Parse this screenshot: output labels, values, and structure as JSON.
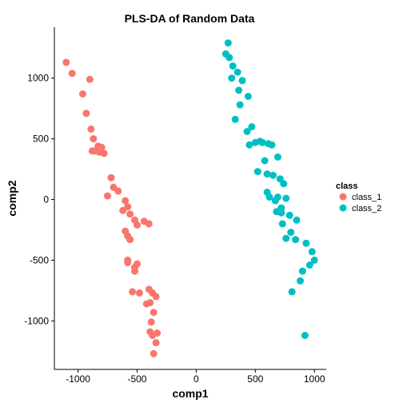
{
  "chart_data": {
    "type": "scatter",
    "title": "PLS-DA of Random Data",
    "xlabel": "comp1",
    "ylabel": "comp2",
    "xlim": [
      -1200,
      1100
    ],
    "ylim": [
      -1400,
      1420
    ],
    "xticks": [
      -1000,
      -500,
      0,
      500,
      1000
    ],
    "xtick_labels": [
      "-1000",
      "-500",
      "0",
      "500",
      "1000"
    ],
    "yticks": [
      -1000,
      -500,
      0,
      500,
      1000
    ],
    "ytick_labels": [
      "-1000",
      "-500",
      "0",
      "500",
      "1000"
    ],
    "grid": false,
    "legend": {
      "title": "class",
      "placement": "right"
    },
    "series": [
      {
        "name": "class_1",
        "color": "#F8766D",
        "x": [
          -1100,
          -1050,
          -900,
          -960,
          -930,
          -890,
          -870,
          -830,
          -820,
          -860,
          -800,
          -780,
          -880,
          -720,
          -700,
          -660,
          -750,
          -600,
          -580,
          -620,
          -560,
          -520,
          -500,
          -440,
          -400,
          -600,
          -580,
          -560,
          -580,
          -520,
          -580,
          -500,
          -520,
          -540,
          -480,
          -400,
          -370,
          -340,
          -390,
          -420,
          -360,
          -380,
          -390,
          -330,
          -370,
          -340,
          -360
        ],
        "y": [
          1130,
          1040,
          990,
          870,
          710,
          580,
          500,
          440,
          390,
          400,
          430,
          380,
          400,
          180,
          100,
          70,
          30,
          -10,
          -60,
          -90,
          -120,
          -170,
          -210,
          -180,
          -200,
          -260,
          -300,
          -330,
          -520,
          -560,
          -500,
          -530,
          -590,
          -760,
          -770,
          -740,
          -770,
          -800,
          -850,
          -860,
          -930,
          -1010,
          -1090,
          -1100,
          -1120,
          -1180,
          -1270
        ]
      },
      {
        "name": "class_2",
        "color": "#00BFC4",
        "x": [
          270,
          250,
          280,
          310,
          350,
          300,
          390,
          360,
          440,
          370,
          330,
          470,
          430,
          500,
          450,
          540,
          560,
          610,
          640,
          690,
          580,
          520,
          600,
          650,
          710,
          740,
          600,
          620,
          670,
          690,
          760,
          720,
          680,
          720,
          790,
          850,
          730,
          800,
          760,
          840,
          930,
          980,
          1000,
          960,
          900,
          880,
          810,
          920
        ],
        "y": [
          1290,
          1200,
          1170,
          1100,
          1050,
          1000,
          980,
          900,
          850,
          780,
          660,
          600,
          560,
          470,
          450,
          480,
          470,
          460,
          450,
          350,
          320,
          230,
          210,
          200,
          170,
          130,
          60,
          20,
          -10,
          20,
          10,
          -70,
          -100,
          -110,
          -130,
          -170,
          -200,
          -270,
          -320,
          -330,
          -360,
          -430,
          -500,
          -540,
          -590,
          -670,
          -760,
          -1120
        ]
      }
    ]
  }
}
